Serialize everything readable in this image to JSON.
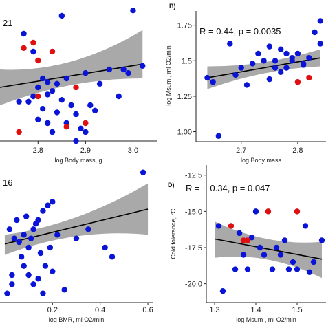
{
  "colors": {
    "blue": "#0a14d6",
    "red": "#e01010",
    "band": "#9a9a9a",
    "line": "#000000"
  },
  "chart_data": [
    {
      "type": "scatter",
      "panel_label": "",
      "annotation": "21",
      "xlabel": "log Body mass, g",
      "ylabel": "",
      "xlim": [
        2.72,
        3.05
      ],
      "ylim": [
        1.2,
        1.95
      ],
      "xticks": [
        {
          "v": 2.8,
          "label": "2.8"
        },
        {
          "v": 2.9,
          "label": "2.9"
        },
        {
          "v": 3.0,
          "label": "3.0"
        }
      ],
      "yticks": [],
      "fit": {
        "x": [
          2.72,
          3.02
        ],
        "y": [
          1.5,
          1.63
        ],
        "band_lower": [
          1.4,
          1.55
        ],
        "band_upper": [
          1.6,
          1.82
        ]
      },
      "series": [
        {
          "color": "blue",
          "x": [
            2.77,
            2.79,
            2.81,
            2.82,
            2.84,
            2.8,
            2.78,
            2.83,
            2.86,
            2.9,
            2.95,
            2.98,
            3.02,
            2.79,
            2.82,
            2.85,
            2.76,
            2.81,
            2.87,
            2.84,
            2.92,
            2.88,
            2.82,
            2.8,
            2.86,
            2.9,
            2.83,
            2.88,
            2.89,
            2.91,
            2.93,
            2.97,
            2.99,
            3.0,
            2.85
          ],
          "y": [
            1.8,
            1.7,
            1.55,
            1.53,
            1.52,
            1.5,
            1.42,
            1.48,
            1.55,
            1.58,
            1.6,
            1.6,
            1.62,
            1.45,
            1.46,
            1.43,
            1.42,
            1.38,
            1.4,
            1.36,
            1.37,
            1.35,
            1.3,
            1.32,
            1.3,
            1.25,
            1.25,
            1.2,
            1.27,
            1.4,
            1.52,
            1.45,
            1.58,
            1.93,
            1.9
          ]
        },
        {
          "color": "red",
          "x": [
            2.77,
            2.79,
            2.8,
            2.83,
            2.76,
            2.86,
            2.9,
            2.88,
            2.8
          ],
          "y": [
            1.72,
            1.75,
            1.65,
            1.7,
            1.25,
            1.28,
            1.3,
            1.5,
            1.45
          ]
        }
      ]
    },
    {
      "type": "scatter",
      "panel_label": "B)",
      "annotation": "R = 0.44, p = 0.0035",
      "xlabel": "log Body mass",
      "ylabel": "log Msum , ml O2/min",
      "xlim": [
        2.62,
        2.85
      ],
      "ylim": [
        0.93,
        1.85
      ],
      "xticks": [
        {
          "v": 2.7,
          "label": "2.7"
        },
        {
          "v": 2.8,
          "label": "2.8"
        }
      ],
      "yticks": [
        {
          "v": 1.0,
          "label": "1.00"
        },
        {
          "v": 1.25,
          "label": "1.25"
        },
        {
          "v": 1.5,
          "label": "1.5"
        },
        {
          "v": 1.75,
          "label": "1.75"
        }
      ],
      "fit": {
        "x": [
          2.64,
          2.84
        ],
        "y": [
          1.38,
          1.52
        ],
        "band_lower": [
          1.3,
          1.46
        ],
        "band_upper": [
          1.46,
          1.58
        ]
      },
      "series": [
        {
          "color": "blue",
          "x": [
            2.64,
            2.66,
            2.68,
            2.7,
            2.72,
            2.73,
            2.74,
            2.75,
            2.76,
            2.77,
            2.78,
            2.79,
            2.8,
            2.81,
            2.82,
            2.83,
            2.84,
            2.65,
            2.69,
            2.71,
            2.75,
            2.78,
            2.81,
            2.84,
            2.79,
            2.77,
            2.76
          ],
          "y": [
            1.38,
            0.97,
            1.62,
            1.45,
            1.48,
            1.55,
            1.5,
            1.6,
            1.45,
            1.42,
            1.55,
            1.5,
            1.55,
            1.48,
            1.52,
            1.7,
            1.78,
            1.35,
            1.4,
            1.33,
            1.37,
            1.45,
            1.47,
            1.62,
            1.52,
            1.58,
            1.5
          ]
        },
        {
          "color": "red",
          "x": [
            2.8,
            2.82
          ],
          "y": [
            1.35,
            1.38
          ]
        }
      ]
    },
    {
      "type": "scatter",
      "panel_label": "",
      "annotation": "16",
      "xlabel": "log BMR, ml O2/min",
      "ylabel": "",
      "xlim": [
        -0.02,
        0.62
      ],
      "ylim": [
        1.15,
        1.9
      ],
      "xticks": [
        {
          "v": 0.2,
          "label": "0.2"
        },
        {
          "v": 0.4,
          "label": "0.4"
        },
        {
          "v": 0.6,
          "label": "0.6"
        }
      ],
      "yticks": [],
      "fit": {
        "x": [
          0.0,
          0.6
        ],
        "y": [
          1.47,
          1.66
        ],
        "band_lower": [
          1.41,
          1.52
        ],
        "band_upper": [
          1.52,
          1.8
        ]
      },
      "series": [
        {
          "color": "blue",
          "x": [
            0.02,
            0.04,
            0.06,
            0.08,
            0.1,
            0.12,
            0.14,
            0.16,
            0.18,
            0.2,
            0.05,
            0.09,
            0.13,
            0.11,
            0.15,
            0.17,
            0.07,
            0.03,
            0.19,
            0.22,
            0.3,
            0.35,
            0.42,
            0.45,
            0.58,
            0.12,
            0.16,
            0.08,
            0.1,
            0.14,
            0.2,
            0.25,
            0.01,
            0.03
          ],
          "y": [
            1.55,
            1.5,
            1.48,
            1.52,
            1.45,
            1.55,
            1.6,
            1.65,
            1.68,
            1.7,
            1.6,
            1.62,
            1.58,
            1.5,
            1.42,
            1.35,
            1.4,
            1.3,
            1.45,
            1.52,
            1.5,
            1.55,
            1.45,
            1.4,
            1.86,
            1.25,
            1.2,
            1.35,
            1.3,
            1.28,
            1.32,
            1.22,
            1.2,
            1.25
          ]
        },
        {
          "color": "red",
          "x": [],
          "y": []
        }
      ]
    },
    {
      "type": "scatter",
      "panel_label": "D)",
      "annotation": "R = − 0.34, p = 0.047",
      "xlabel": "log Msum , ml O2/min",
      "ylabel": "Cold tolerance, °C",
      "xlim": [
        1.28,
        1.57
      ],
      "ylim": [
        -21.3,
        -11.8
      ],
      "xticks": [
        {
          "v": 1.3,
          "label": "1.3"
        },
        {
          "v": 1.4,
          "label": "1.4"
        },
        {
          "v": 1.5,
          "label": "1.5"
        }
      ],
      "yticks": [
        {
          "v": -20,
          "label": "-20.0"
        },
        {
          "v": -17.5,
          "label": "-17.5"
        },
        {
          "v": -15,
          "label": "-15.0"
        },
        {
          "v": -12.5,
          "label": "-12.5"
        }
      ],
      "fit": {
        "x": [
          1.3,
          1.56
        ],
        "y": [
          -16.9,
          -18.3
        ],
        "band_lower": [
          -18.2,
          -19.6
        ],
        "band_upper": [
          -15.7,
          -17.1
        ]
      },
      "series": [
        {
          "color": "blue",
          "x": [
            1.31,
            1.32,
            1.35,
            1.37,
            1.38,
            1.4,
            1.42,
            1.45,
            1.47,
            1.48,
            1.5,
            1.52,
            1.54,
            1.56,
            1.36,
            1.41,
            1.46,
            1.49,
            1.53,
            1.39,
            1.44
          ],
          "y": [
            -16.0,
            -20.5,
            -19.0,
            -18.0,
            -19.0,
            -15.0,
            -18.0,
            -17.5,
            -17.0,
            -19.0,
            -19.0,
            -16.0,
            -18.5,
            -17.0,
            -16.5,
            -17.5,
            -18.0,
            -18.5,
            -19.2,
            -16.8,
            -19.0
          ]
        },
        {
          "color": "red",
          "x": [
            1.34,
            1.37,
            1.38,
            1.43,
            1.5
          ],
          "y": [
            -16.0,
            -17.0,
            -17.0,
            -15.0,
            -15.0
          ]
        }
      ]
    }
  ]
}
